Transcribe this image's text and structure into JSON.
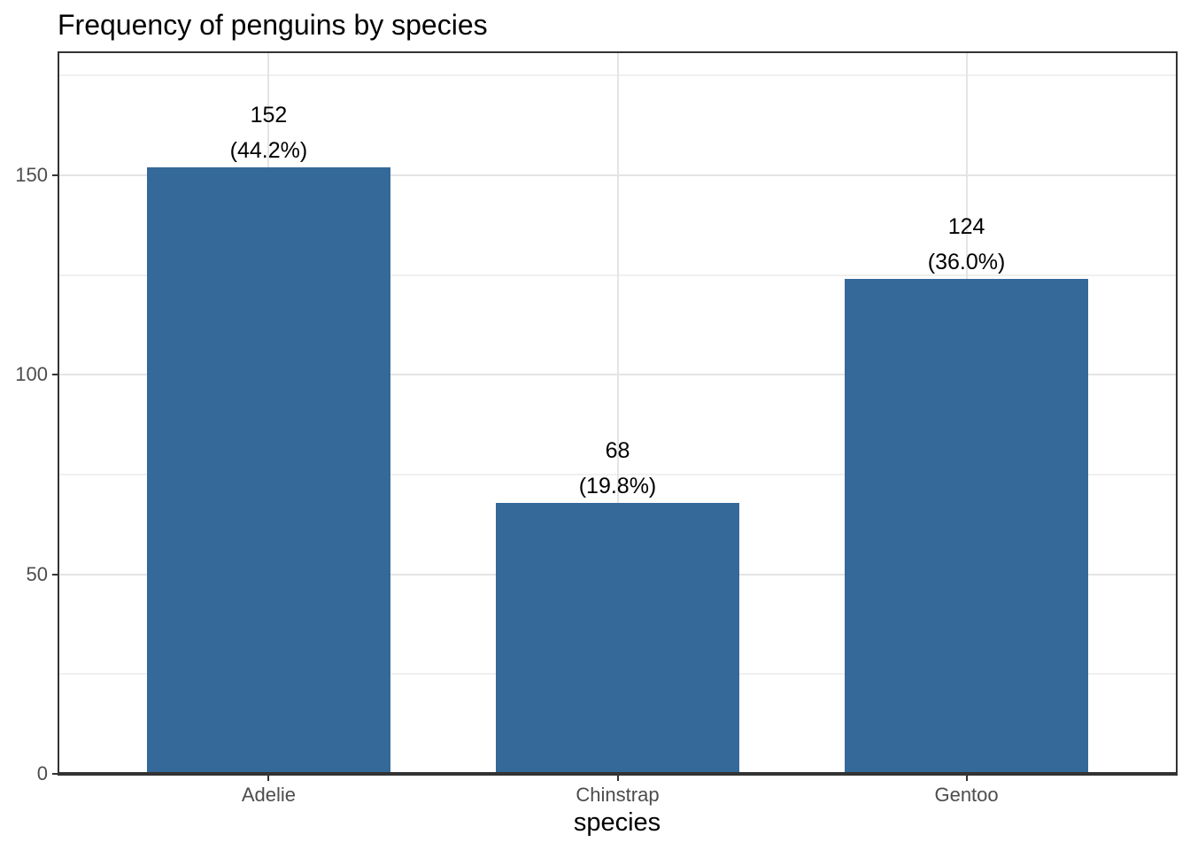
{
  "chart": {
    "title": "Frequency of penguins by species",
    "xlabel": "species"
  },
  "chart_data": {
    "type": "bar",
    "title": "Frequency of penguins by species",
    "xlabel": "species",
    "ylabel": "",
    "categories": [
      "Adelie",
      "Chinstrap",
      "Gentoo"
    ],
    "values": [
      152,
      68,
      124
    ],
    "bar_labels": {
      "counts": [
        "152",
        "68",
        "124"
      ],
      "percents": [
        "(44.2%)",
        "(19.8%)",
        "(36.0%)"
      ]
    },
    "ylim": [
      0,
      180.6
    ],
    "yticks_major": [
      0,
      50,
      100,
      150
    ],
    "yticks_minor": [
      25,
      75,
      125,
      175
    ],
    "grid": "on",
    "legend": "none",
    "bar_width_fraction": 0.7,
    "colors": {
      "bar": "#34699a",
      "panel_border": "#333333",
      "axis_line": "#333333",
      "grid_major": "#e4e4e4",
      "grid_minor": "#f0f0f0",
      "tick_label": "#4d4d4d",
      "axis_title": "#000000",
      "bar_label": "#000000",
      "background": "#ffffff"
    }
  }
}
